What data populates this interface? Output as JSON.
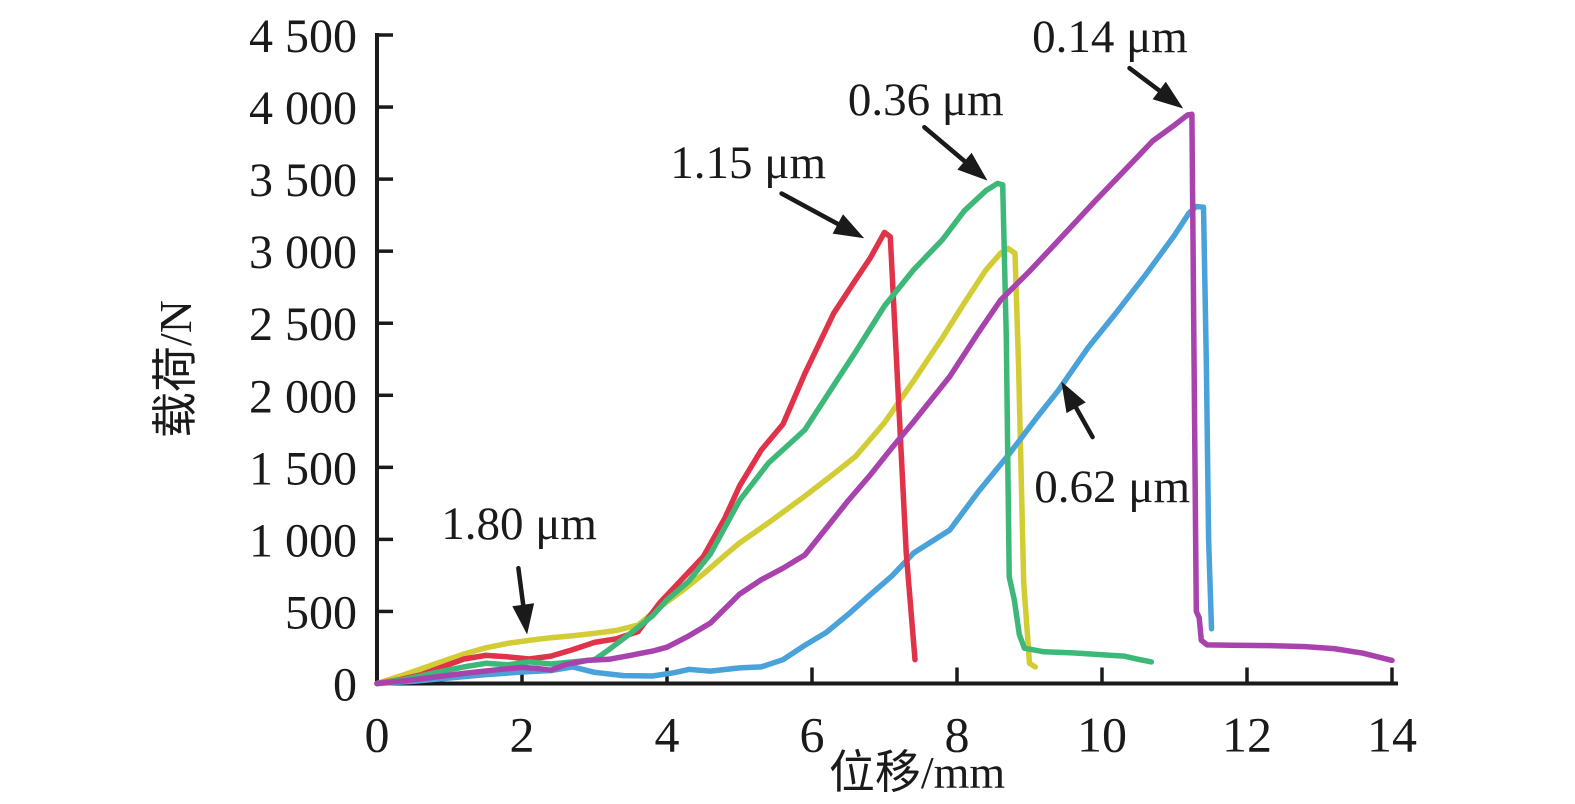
{
  "figure": {
    "background": "#ffffff",
    "axis_color": "#1a1a1a",
    "text_color": "#1a1a1a"
  },
  "chart_data": {
    "type": "line",
    "title": "",
    "xlabel": "位移/mm",
    "ylabel": "载荷/N",
    "xlim": [
      0,
      14
    ],
    "ylim": [
      0,
      4500
    ],
    "grid": false,
    "legend_position": "none",
    "xticks": {
      "values": [
        0,
        2,
        4,
        6,
        8,
        10,
        12,
        14
      ],
      "labels": [
        "0",
        "2",
        "4",
        "6",
        "8",
        "10",
        "12",
        "14"
      ]
    },
    "yticks": {
      "values": [
        0,
        500,
        1000,
        1500,
        2000,
        2500,
        3000,
        3500,
        4000,
        4500
      ],
      "labels": [
        "0",
        "500",
        "1 000",
        "1 500",
        "2 000",
        "2 500",
        "3 000",
        "3 500",
        "4 000",
        "4 500"
      ]
    },
    "series": [
      {
        "name": "1.80 μm",
        "color": "#d2cc35",
        "peak": {
          "x": 8.7,
          "load": 3020
        },
        "points": [
          [
            0,
            0
          ],
          [
            0.4,
            65
          ],
          [
            0.8,
            135
          ],
          [
            1.2,
            205
          ],
          [
            1.5,
            248
          ],
          [
            1.8,
            278
          ],
          [
            2.1,
            300
          ],
          [
            2.4,
            318
          ],
          [
            2.7,
            332
          ],
          [
            3.0,
            348
          ],
          [
            3.3,
            368
          ],
          [
            3.6,
            405
          ],
          [
            3.9,
            530
          ],
          [
            4.2,
            640
          ],
          [
            4.5,
            760
          ],
          [
            4.8,
            890
          ],
          [
            5.0,
            975
          ],
          [
            5.4,
            1115
          ],
          [
            5.9,
            1300
          ],
          [
            6.3,
            1455
          ],
          [
            6.6,
            1575
          ],
          [
            7.0,
            1810
          ],
          [
            7.4,
            2100
          ],
          [
            7.8,
            2400
          ],
          [
            8.1,
            2640
          ],
          [
            8.4,
            2870
          ],
          [
            8.6,
            2985
          ],
          [
            8.7,
            3020
          ],
          [
            8.8,
            2985
          ],
          [
            8.85,
            2200
          ],
          [
            8.92,
            700
          ],
          [
            9.0,
            140
          ],
          [
            9.08,
            115
          ]
        ]
      },
      {
        "name": "0.62 μm",
        "color": "#4aa2da",
        "peak": {
          "x": 11.3,
          "load": 3310
        },
        "points": [
          [
            0,
            0
          ],
          [
            0.5,
            15
          ],
          [
            1.0,
            38
          ],
          [
            1.5,
            62
          ],
          [
            2.0,
            80
          ],
          [
            2.4,
            90
          ],
          [
            2.7,
            115
          ],
          [
            3.0,
            78
          ],
          [
            3.4,
            55
          ],
          [
            3.8,
            52
          ],
          [
            4.1,
            75
          ],
          [
            4.3,
            98
          ],
          [
            4.6,
            86
          ],
          [
            5.0,
            108
          ],
          [
            5.3,
            115
          ],
          [
            5.6,
            165
          ],
          [
            5.9,
            265
          ],
          [
            6.2,
            355
          ],
          [
            6.5,
            480
          ],
          [
            6.8,
            615
          ],
          [
            7.1,
            745
          ],
          [
            7.4,
            905
          ],
          [
            7.9,
            1065
          ],
          [
            8.3,
            1335
          ],
          [
            8.7,
            1580
          ],
          [
            9.1,
            1845
          ],
          [
            9.4,
            2035
          ],
          [
            9.8,
            2325
          ],
          [
            10.2,
            2575
          ],
          [
            10.6,
            2835
          ],
          [
            11.0,
            3110
          ],
          [
            11.2,
            3265
          ],
          [
            11.3,
            3310
          ],
          [
            11.4,
            3305
          ],
          [
            11.44,
            2200
          ],
          [
            11.47,
            1000
          ],
          [
            11.51,
            380
          ]
        ]
      },
      {
        "name": "1.15 μm",
        "color": "#e03248",
        "peak": {
          "x": 7.0,
          "load": 3130
        },
        "points": [
          [
            0,
            0
          ],
          [
            0.3,
            25
          ],
          [
            0.6,
            60
          ],
          [
            0.9,
            115
          ],
          [
            1.2,
            170
          ],
          [
            1.5,
            195
          ],
          [
            1.8,
            185
          ],
          [
            2.1,
            170
          ],
          [
            2.4,
            190
          ],
          [
            2.7,
            235
          ],
          [
            3.0,
            285
          ],
          [
            3.3,
            310
          ],
          [
            3.6,
            360
          ],
          [
            3.9,
            560
          ],
          [
            4.2,
            720
          ],
          [
            4.5,
            880
          ],
          [
            4.8,
            1150
          ],
          [
            5.0,
            1370
          ],
          [
            5.3,
            1620
          ],
          [
            5.6,
            1800
          ],
          [
            5.9,
            2150
          ],
          [
            6.3,
            2570
          ],
          [
            6.6,
            2800
          ],
          [
            6.8,
            2950
          ],
          [
            7.0,
            3130
          ],
          [
            7.08,
            3100
          ],
          [
            7.2,
            1900
          ],
          [
            7.3,
            900
          ],
          [
            7.42,
            165
          ]
        ]
      },
      {
        "name": "0.36 μm",
        "color": "#3eb878",
        "peak": {
          "x": 8.6,
          "load": 3470
        },
        "points": [
          [
            0,
            0
          ],
          [
            0.4,
            30
          ],
          [
            0.8,
            75
          ],
          [
            1.2,
            115
          ],
          [
            1.5,
            140
          ],
          [
            1.8,
            130
          ],
          [
            2.1,
            150
          ],
          [
            2.4,
            135
          ],
          [
            2.7,
            150
          ],
          [
            3.0,
            165
          ],
          [
            3.2,
            235
          ],
          [
            3.5,
            350
          ],
          [
            3.8,
            470
          ],
          [
            4.0,
            580
          ],
          [
            4.3,
            710
          ],
          [
            4.6,
            900
          ],
          [
            5.0,
            1270
          ],
          [
            5.4,
            1530
          ],
          [
            5.9,
            1760
          ],
          [
            6.3,
            2070
          ],
          [
            6.6,
            2300
          ],
          [
            7.0,
            2620
          ],
          [
            7.4,
            2870
          ],
          [
            7.8,
            3080
          ],
          [
            8.1,
            3280
          ],
          [
            8.4,
            3420
          ],
          [
            8.56,
            3470
          ],
          [
            8.63,
            3460
          ],
          [
            8.68,
            2400
          ],
          [
            8.72,
            740
          ],
          [
            8.79,
            580
          ],
          [
            8.86,
            340
          ],
          [
            8.93,
            245
          ],
          [
            9.2,
            220
          ],
          [
            9.6,
            212
          ],
          [
            10.0,
            200
          ],
          [
            10.3,
            190
          ],
          [
            10.5,
            168
          ],
          [
            10.68,
            150
          ]
        ]
      },
      {
        "name": "0.14 μm",
        "color": "#a843ae",
        "peak": {
          "x": 11.2,
          "load": 3950
        },
        "points": [
          [
            0,
            0
          ],
          [
            0.4,
            20
          ],
          [
            0.8,
            45
          ],
          [
            1.2,
            70
          ],
          [
            1.6,
            92
          ],
          [
            2.0,
            112
          ],
          [
            2.2,
            105
          ],
          [
            2.4,
            92
          ],
          [
            2.6,
            132
          ],
          [
            2.9,
            160
          ],
          [
            3.2,
            168
          ],
          [
            3.5,
            196
          ],
          [
            3.8,
            225
          ],
          [
            4.0,
            252
          ],
          [
            4.3,
            330
          ],
          [
            4.6,
            420
          ],
          [
            5.0,
            620
          ],
          [
            5.3,
            720
          ],
          [
            5.6,
            800
          ],
          [
            5.9,
            892
          ],
          [
            6.2,
            1080
          ],
          [
            6.5,
            1270
          ],
          [
            6.8,
            1445
          ],
          [
            7.1,
            1635
          ],
          [
            7.4,
            1815
          ],
          [
            7.9,
            2130
          ],
          [
            8.3,
            2440
          ],
          [
            8.6,
            2660
          ],
          [
            9.0,
            2860
          ],
          [
            9.4,
            3075
          ],
          [
            9.9,
            3345
          ],
          [
            10.3,
            3555
          ],
          [
            10.7,
            3765
          ],
          [
            11.0,
            3875
          ],
          [
            11.18,
            3945
          ],
          [
            11.24,
            3950
          ],
          [
            11.27,
            2200
          ],
          [
            11.3,
            500
          ],
          [
            11.34,
            455
          ],
          [
            11.37,
            300
          ],
          [
            11.45,
            268
          ],
          [
            11.8,
            266
          ],
          [
            12.3,
            263
          ],
          [
            12.8,
            256
          ],
          [
            13.2,
            242
          ],
          [
            13.6,
            210
          ],
          [
            14.0,
            160
          ]
        ]
      }
    ],
    "annotations": [
      {
        "text": "0.14 μm",
        "label": [
          10.11,
          4485
        ],
        "arrow_from": [
          10.38,
          4270
        ],
        "arrow_to": [
          11.12,
          3990
        ]
      },
      {
        "text": "0.36 μm",
        "label": [
          7.57,
          4050
        ],
        "arrow_from": [
          7.55,
          3860
        ],
        "arrow_to": [
          8.42,
          3490
        ]
      },
      {
        "text": "1.15 μm",
        "label": [
          5.12,
          3615
        ],
        "arrow_from": [
          5.58,
          3400
        ],
        "arrow_to": [
          6.72,
          3090
        ]
      },
      {
        "text": "1.80 μm",
        "label": [
          1.96,
          1105
        ],
        "arrow_from": [
          1.95,
          800
        ],
        "arrow_to": [
          2.07,
          340
        ]
      },
      {
        "text": "0.62 μm",
        "label": [
          10.14,
          1365
        ],
        "arrow_from": [
          9.87,
          1710
        ],
        "arrow_to": [
          9.44,
          2095
        ]
      }
    ]
  }
}
